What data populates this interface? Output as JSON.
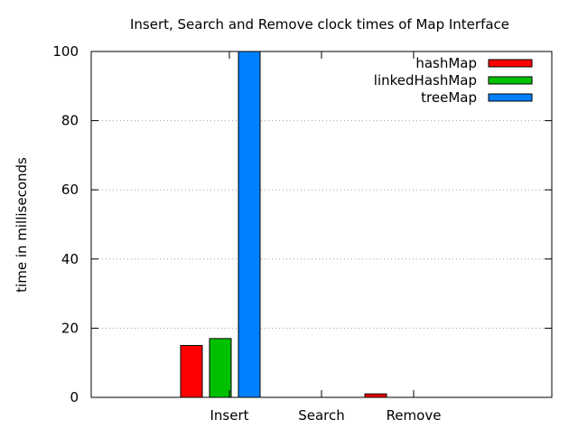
{
  "chart_data": {
    "type": "bar",
    "title": "Insert, Search and Remove clock times of Map Interface",
    "xlabel": "",
    "ylabel": "time in milliseconds",
    "categories": [
      "Insert",
      "Search",
      "Remove"
    ],
    "ylim": [
      0,
      100
    ],
    "yticks": [
      0,
      20,
      40,
      60,
      80,
      100
    ],
    "grid": "horizontal-dotted",
    "legend_position": "top-right",
    "series": [
      {
        "name": "hashMap",
        "color": "#ff0000",
        "values": [
          15,
          0,
          1
        ]
      },
      {
        "name": "linkedHashMap",
        "color": "#00c000",
        "values": [
          17,
          0,
          0
        ]
      },
      {
        "name": "treeMap",
        "color": "#0080ff",
        "values": [
          100,
          0,
          0
        ]
      }
    ]
  }
}
